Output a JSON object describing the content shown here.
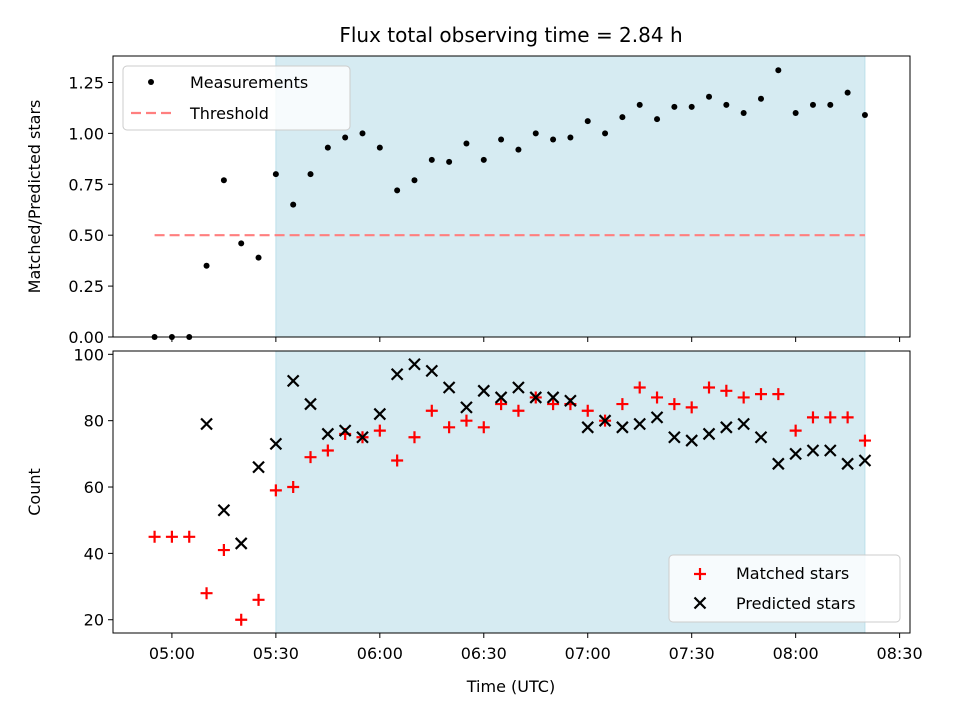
{
  "chart_data": [
    {
      "type": "scatter",
      "title": "Flux total observing time = 2.84 h",
      "xlabel": "",
      "ylabel": "Matched/Predicted stars",
      "ylim": [
        0,
        1.38
      ],
      "yticks": [
        0.0,
        0.25,
        0.5,
        0.75,
        1.0,
        1.25
      ],
      "ytick_labels": [
        "0.00",
        "0.25",
        "0.50",
        "0.75",
        "1.00",
        "1.25"
      ],
      "grid": false,
      "legend_placement": "upper-left",
      "shaded_region": {
        "start": "05:30",
        "end": "08:20",
        "color": "#add8e6"
      },
      "threshold": {
        "name": "Threshold",
        "value": 0.5,
        "x_start": "04:55",
        "x_end": "08:20",
        "color": "#ff7f7f"
      },
      "series": [
        {
          "name": "Measurements",
          "color": "#000000",
          "times": [
            "04:55",
            "05:00",
            "05:05",
            "05:10",
            "05:15",
            "05:20",
            "05:25",
            "05:30",
            "05:35",
            "05:40",
            "05:45",
            "05:50",
            "05:55",
            "06:00",
            "06:05",
            "06:10",
            "06:15",
            "06:20",
            "06:25",
            "06:30",
            "06:35",
            "06:40",
            "06:45",
            "06:50",
            "06:55",
            "07:00",
            "07:05",
            "07:10",
            "07:15",
            "07:20",
            "07:25",
            "07:30",
            "07:35",
            "07:40",
            "07:45",
            "07:50",
            "07:55",
            "08:00",
            "08:05",
            "08:10",
            "08:15",
            "08:20"
          ],
          "values": [
            0.0,
            0.0,
            0.0,
            0.35,
            0.77,
            0.46,
            0.39,
            0.8,
            0.65,
            0.8,
            0.93,
            0.98,
            1.0,
            0.93,
            0.72,
            0.77,
            0.87,
            0.86,
            0.95,
            0.87,
            0.97,
            0.92,
            1.0,
            0.97,
            0.98,
            1.06,
            1.0,
            1.08,
            1.14,
            1.07,
            1.13,
            1.13,
            1.18,
            1.14,
            1.1,
            1.17,
            1.31,
            1.1,
            1.14,
            1.14,
            1.2,
            1.09
          ]
        }
      ]
    },
    {
      "type": "scatter",
      "title": "",
      "xlabel": "Time (UTC)",
      "ylabel": "Count",
      "ylim": [
        16,
        101
      ],
      "yticks": [
        20,
        40,
        60,
        80,
        100
      ],
      "ytick_labels": [
        "20",
        "40",
        "60",
        "80",
        "100"
      ],
      "xticks": [
        "05:00",
        "05:30",
        "06:00",
        "06:30",
        "07:00",
        "07:30",
        "08:00",
        "08:30"
      ],
      "xlim": [
        "04:43",
        "08:33"
      ],
      "grid": false,
      "legend_placement": "lower-right",
      "shaded_region": {
        "start": "05:30",
        "end": "08:20",
        "color": "#add8e6"
      },
      "series": [
        {
          "name": "Matched stars",
          "marker": "+",
          "color": "#ff0000",
          "times": [
            "04:55",
            "05:00",
            "05:05",
            "05:10",
            "05:15",
            "05:20",
            "05:25",
            "05:30",
            "05:35",
            "05:40",
            "05:45",
            "05:50",
            "05:55",
            "06:00",
            "06:05",
            "06:10",
            "06:15",
            "06:20",
            "06:25",
            "06:30",
            "06:35",
            "06:40",
            "06:45",
            "06:50",
            "06:55",
            "07:00",
            "07:05",
            "07:10",
            "07:15",
            "07:20",
            "07:25",
            "07:30",
            "07:35",
            "07:40",
            "07:45",
            "07:50",
            "07:55",
            "08:00",
            "08:05",
            "08:10",
            "08:15",
            "08:20"
          ],
          "values": [
            45,
            45,
            45,
            28,
            41,
            20,
            26,
            59,
            60,
            69,
            71,
            76,
            75,
            77,
            68,
            75,
            83,
            78,
            80,
            78,
            85,
            83,
            87,
            85,
            85,
            83,
            80,
            85,
            90,
            87,
            85,
            84,
            90,
            89,
            87,
            88,
            88,
            77,
            81,
            81,
            81,
            74
          ]
        },
        {
          "name": "Predicted stars",
          "marker": "x",
          "color": "#000000",
          "times": [
            "05:10",
            "05:15",
            "05:20",
            "05:25",
            "05:30",
            "05:35",
            "05:40",
            "05:45",
            "05:50",
            "05:55",
            "06:00",
            "06:05",
            "06:10",
            "06:15",
            "06:20",
            "06:25",
            "06:30",
            "06:35",
            "06:40",
            "06:45",
            "06:50",
            "06:55",
            "07:00",
            "07:05",
            "07:10",
            "07:15",
            "07:20",
            "07:25",
            "07:30",
            "07:35",
            "07:40",
            "07:45",
            "07:50",
            "07:55",
            "08:00",
            "08:05",
            "08:10",
            "08:15",
            "08:20"
          ],
          "values": [
            79,
            53,
            43,
            66,
            73,
            92,
            85,
            76,
            77,
            75,
            82,
            94,
            97,
            95,
            90,
            84,
            89,
            87,
            90,
            87,
            87,
            86,
            78,
            80,
            78,
            79,
            81,
            75,
            74,
            76,
            78,
            79,
            75,
            67,
            70,
            71,
            71,
            67,
            68
          ]
        }
      ]
    }
  ]
}
